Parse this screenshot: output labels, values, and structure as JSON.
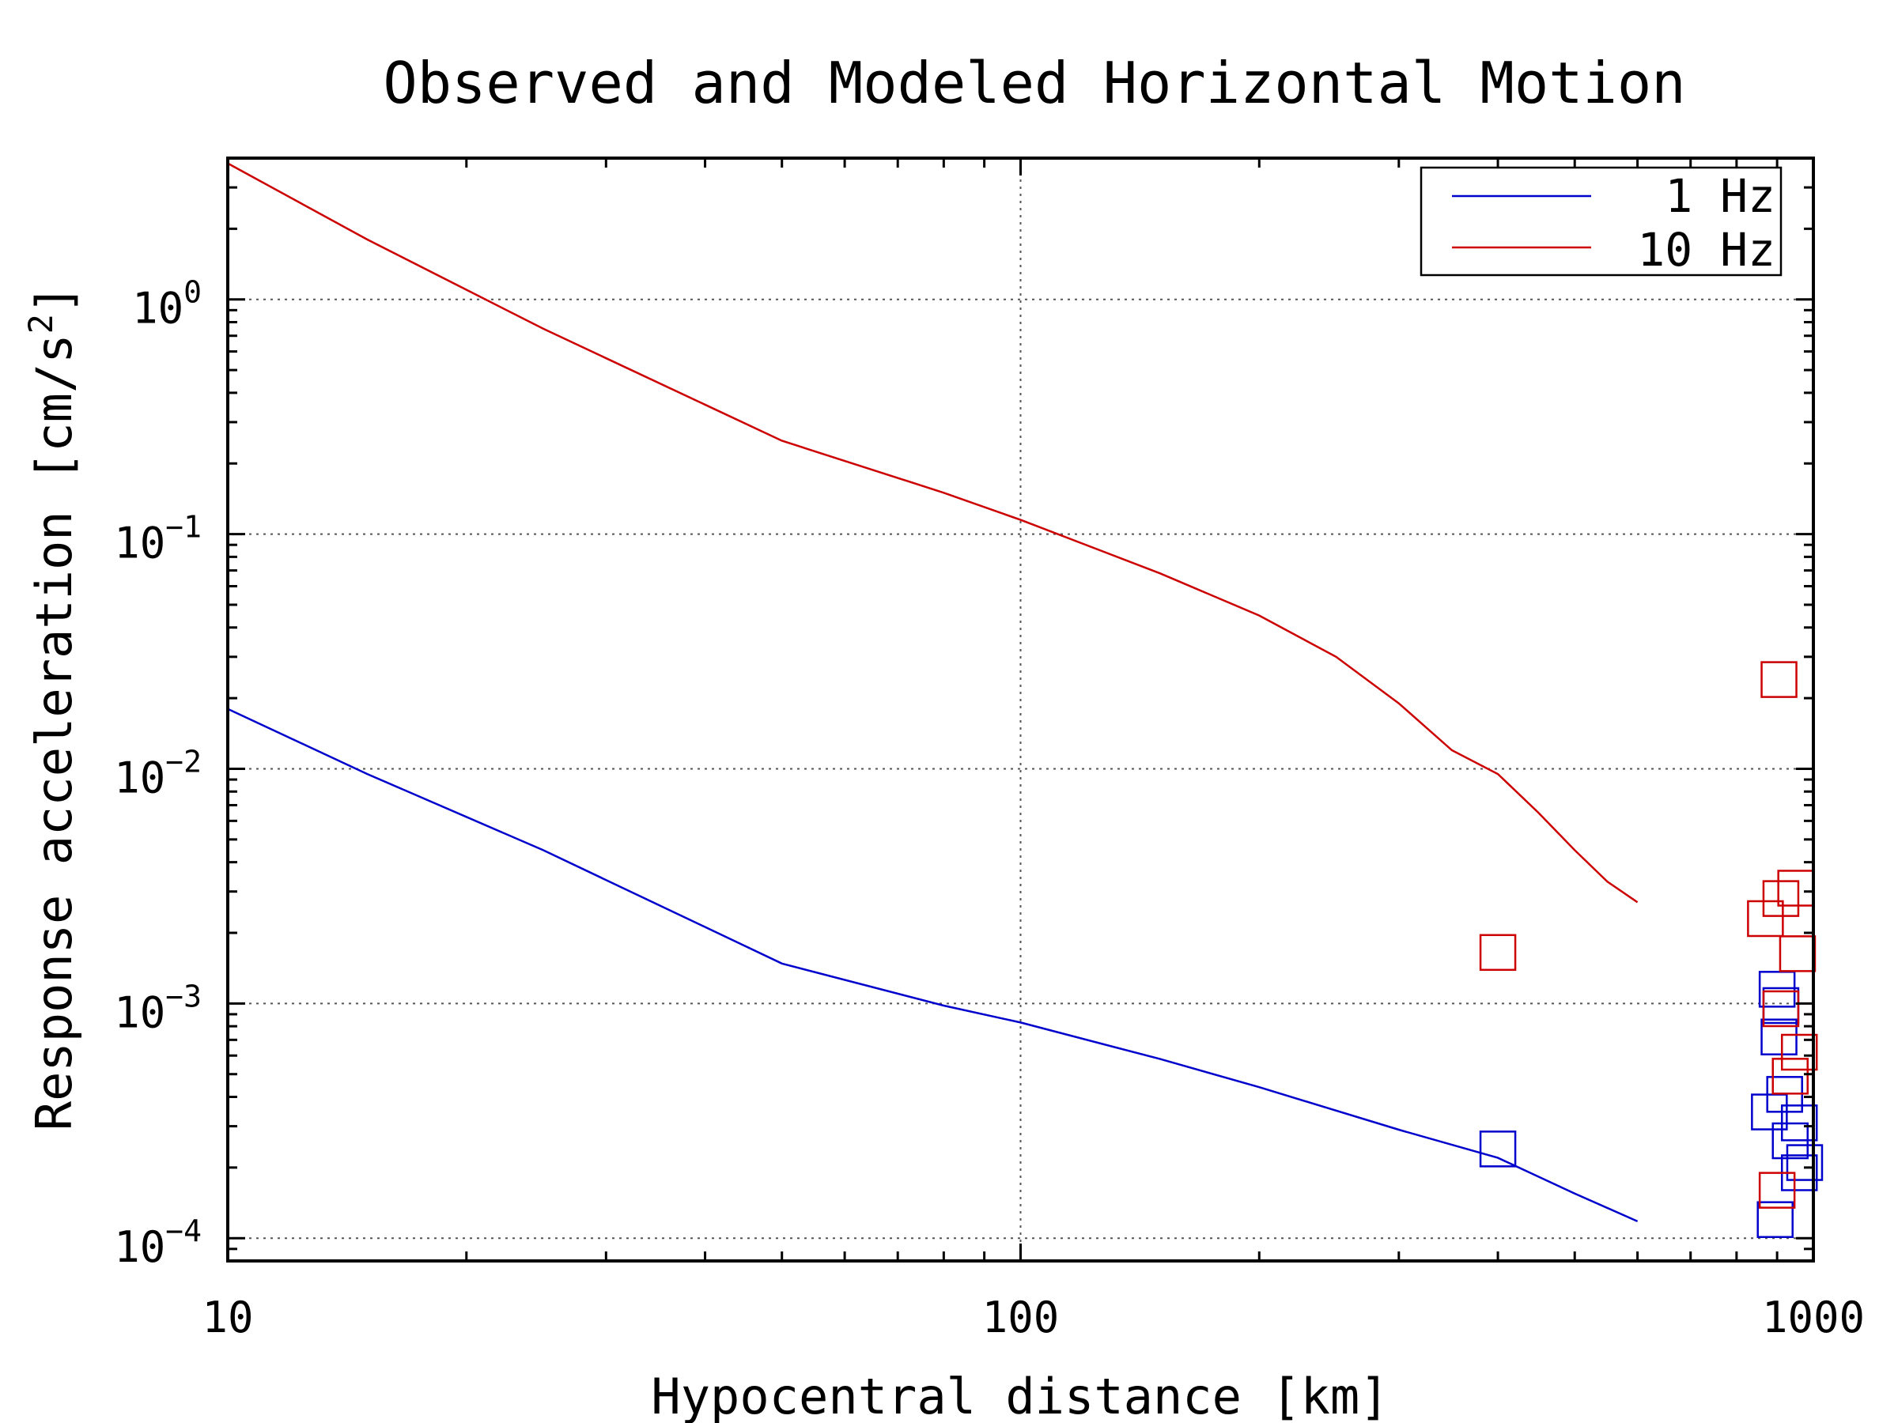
{
  "chart_data": {
    "type": "line",
    "title": "Observed and Modeled Horizontal Motion",
    "xlabel": "Hypocentral distance [km]",
    "ylabel": "Response acceleration [cm/s2]",
    "xscale": "log",
    "yscale": "log",
    "xlim": [
      10,
      1000
    ],
    "ylim": [
      8e-05,
      4
    ],
    "x_ticks": [
      {
        "value": 10,
        "label": "10"
      },
      {
        "value": 100,
        "label": "100"
      },
      {
        "value": 1000,
        "label": "1000"
      }
    ],
    "y_ticks": [
      {
        "value": 0.0001,
        "base": "10",
        "exp": "−4"
      },
      {
        "value": 0.001,
        "base": "10",
        "exp": "−3"
      },
      {
        "value": 0.01,
        "base": "10",
        "exp": "−2"
      },
      {
        "value": 0.1,
        "base": "10",
        "exp": "−1"
      },
      {
        "value": 1,
        "base": "10",
        "exp": "0"
      }
    ],
    "grid": true,
    "legend_position": "top-right",
    "series": [
      {
        "name": "1 Hz",
        "color": "#0000cc",
        "line": [
          [
            10,
            0.018
          ],
          [
            15,
            0.0095
          ],
          [
            25,
            0.0045
          ],
          [
            50,
            0.00148
          ],
          [
            80,
            0.00098
          ],
          [
            100,
            0.00083
          ],
          [
            150,
            0.00058
          ],
          [
            200,
            0.00044
          ],
          [
            300,
            0.00029
          ],
          [
            400,
            0.00022
          ],
          [
            500,
            0.000155
          ],
          [
            600,
            0.000118
          ]
        ],
        "observed": [
          [
            400,
            0.00024
          ],
          [
            880,
            0.000345
          ],
          [
            900,
            0.00115
          ],
          [
            910,
            0.00098
          ],
          [
            905,
            0.00072
          ],
          [
            920,
            0.00041
          ],
          [
            935,
            0.00026
          ],
          [
            960,
            0.00031
          ],
          [
            960,
            0.00019
          ],
          [
            975,
            0.00021
          ],
          [
            895,
            0.00012
          ]
        ]
      },
      {
        "name": "10 Hz",
        "color": "#cc0000",
        "line": [
          [
            10,
            3.8
          ],
          [
            15,
            1.8
          ],
          [
            25,
            0.75
          ],
          [
            50,
            0.25
          ],
          [
            80,
            0.15
          ],
          [
            100,
            0.115
          ],
          [
            150,
            0.068
          ],
          [
            200,
            0.045
          ],
          [
            250,
            0.03
          ],
          [
            300,
            0.019
          ],
          [
            350,
            0.012
          ],
          [
            400,
            0.0095
          ],
          [
            450,
            0.0065
          ],
          [
            500,
            0.0045
          ],
          [
            550,
            0.0033
          ],
          [
            600,
            0.0027
          ]
        ],
        "observed": [
          [
            400,
            0.00165
          ],
          [
            905,
            0.024
          ],
          [
            870,
            0.0023
          ],
          [
            910,
            0.0028
          ],
          [
            950,
            0.0031
          ],
          [
            955,
            0.00163
          ],
          [
            910,
            0.00095
          ],
          [
            960,
            0.00062
          ],
          [
            935,
            0.00049
          ],
          [
            900,
            0.00016
          ]
        ]
      }
    ]
  }
}
